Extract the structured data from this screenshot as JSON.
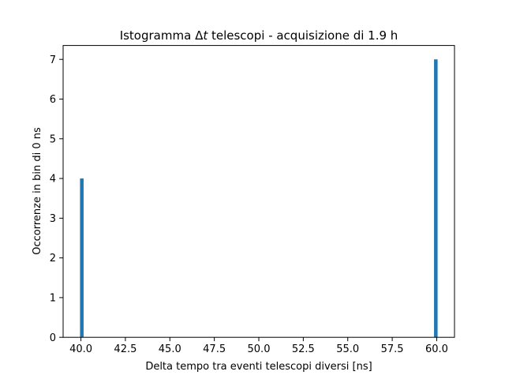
{
  "chart_data": {
    "type": "bar",
    "title_prefix": "Istogramma ",
    "title_delta": "Δ",
    "title_var": "t",
    "title_suffix": " telescopi - acquisizione di 1.9 h",
    "xlabel": "Delta tempo tra eventi telescopi diversi [ns]",
    "ylabel": "Occorrenze in bin di 0 ns",
    "xlim": [
      39.0,
      61.0
    ],
    "ylim": [
      0,
      7.35
    ],
    "xticks": [
      "40.0",
      "42.5",
      "45.0",
      "47.5",
      "50.0",
      "52.5",
      "55.0",
      "57.5",
      "60.0"
    ],
    "xtick_values": [
      40.0,
      42.5,
      45.0,
      47.5,
      50.0,
      52.5,
      55.0,
      57.5,
      60.0
    ],
    "yticks": [
      0,
      1,
      2,
      3,
      4,
      5,
      6,
      7
    ],
    "bins": [
      {
        "left": 39.95,
        "right": 40.15,
        "value": 4
      },
      {
        "left": 59.85,
        "right": 60.05,
        "value": 7
      }
    ],
    "bar_color": "#1f77b4",
    "grid": false
  }
}
